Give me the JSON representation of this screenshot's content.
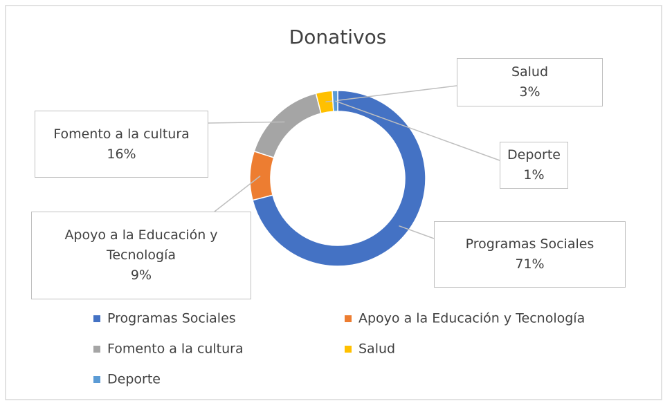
{
  "chart_data": {
    "type": "donut",
    "title": "Donativos",
    "categories": [
      "Programas Sociales",
      "Apoyo a la Educación y Tecnología",
      "Fomento a la cultura",
      "Salud",
      "Deporte"
    ],
    "values": [
      71,
      9,
      16,
      3,
      1
    ],
    "value_labels": [
      "71%",
      "9%",
      "16%",
      "3%",
      "1%"
    ],
    "colors": [
      "#4472c4",
      "#ed7d31",
      "#a5a5a5",
      "#ffc000",
      "#5b9bd5"
    ],
    "legend": "bottom"
  }
}
